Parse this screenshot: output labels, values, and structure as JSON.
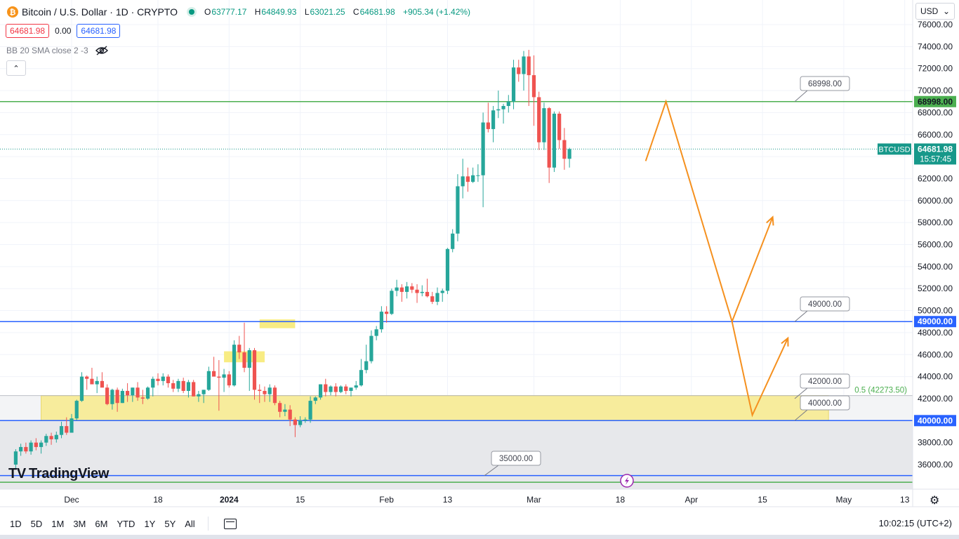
{
  "header": {
    "symbol_title": "Bitcoin / U.S. Dollar · 1D · CRYPTO",
    "btc_glyph": "₿",
    "ohlc": [
      {
        "key": "O",
        "value": "63777.17"
      },
      {
        "key": "H",
        "value": "64849.93"
      },
      {
        "key": "L",
        "value": "63021.25"
      },
      {
        "key": "C",
        "value": "64681.98"
      },
      {
        "key": "",
        "value": "+905.34 (+1.42%)"
      }
    ],
    "sell_price": "64681.98",
    "spread": "0.00",
    "buy_price": "64681.98",
    "indicator": "BB 20 SMA close 2 -3",
    "collapse_glyph": "⌃",
    "currency": "USD",
    "currency_caret": "⌄"
  },
  "branding": {
    "logo_mark": "TV",
    "logo_text": "TradingView"
  },
  "bottom_bar": {
    "timeframes": [
      "1D",
      "5D",
      "1M",
      "3M",
      "6M",
      "YTD",
      "1Y",
      "5Y",
      "All"
    ],
    "clock": "10:02:15 (UTC+2)",
    "gear_glyph": "⚙"
  },
  "colors": {
    "up": "#26a69a",
    "down": "#ef5350",
    "support_blue": "#2962ff",
    "resistance_green": "#4caf50",
    "forecast": "#f5901e",
    "zone": "#f7ea8c",
    "lower_shade": "#e7e8eb",
    "last_price": "#17988a"
  },
  "chart_data": {
    "type": "candlestick",
    "symbol": "BTCUSD",
    "ylim": [
      34300,
      77000
    ],
    "y_ticks": [
      "36000.00",
      "38000.00",
      "40000.00",
      "42000.00",
      "44000.00",
      "46000.00",
      "48000.00",
      "50000.00",
      "52000.00",
      "54000.00",
      "56000.00",
      "58000.00",
      "60000.00",
      "62000.00",
      "64000.00",
      "66000.00",
      "68000.00",
      "70000.00",
      "72000.00",
      "74000.00",
      "76000.00"
    ],
    "x_ticks": [
      {
        "label": "Dec",
        "date": "2023-12-01"
      },
      {
        "label": "18",
        "date": "2023-12-18"
      },
      {
        "label": "2024",
        "date": "2024-01-01",
        "bold": true
      },
      {
        "label": "15",
        "date": "2024-01-15"
      },
      {
        "label": "Feb",
        "date": "2024-02-01"
      },
      {
        "label": "13",
        "date": "2024-02-13"
      },
      {
        "label": "Mar",
        "date": "2024-03-01"
      },
      {
        "label": "18",
        "date": "2024-03-18"
      },
      {
        "label": "Apr",
        "date": "2024-04-01"
      },
      {
        "label": "15",
        "date": "2024-04-15"
      },
      {
        "label": "May",
        "date": "2024-05-01"
      },
      {
        "label": "13",
        "date": "2024-05-13"
      }
    ],
    "first_date": "2023-11-20",
    "candles": [
      [
        36000,
        37400,
        35600,
        37200
      ],
      [
        37200,
        37900,
        36800,
        37600
      ],
      [
        37600,
        38000,
        37000,
        37200
      ],
      [
        37200,
        38200,
        36900,
        38000
      ],
      [
        38000,
        38400,
        37300,
        37600
      ],
      [
        37600,
        38200,
        37000,
        38000
      ],
      [
        38000,
        38800,
        37700,
        38600
      ],
      [
        38600,
        38900,
        37800,
        38300
      ],
      [
        38300,
        39000,
        38000,
        38700
      ],
      [
        38700,
        39900,
        38400,
        39500
      ],
      [
        39500,
        40300,
        38700,
        38900
      ],
      [
        38900,
        40600,
        38900,
        40200
      ],
      [
        40200,
        41900,
        40000,
        41800
      ],
      [
        41800,
        44400,
        41700,
        44000
      ],
      [
        44000,
        44100,
        42800,
        43800
      ],
      [
        43800,
        44800,
        43400,
        43300
      ],
      [
        43300,
        44000,
        42500,
        43600
      ],
      [
        43600,
        44400,
        43200,
        43000
      ],
      [
        43000,
        43300,
        41400,
        41500
      ],
      [
        41500,
        42900,
        41000,
        42800
      ],
      [
        42800,
        43000,
        40800,
        41600
      ],
      [
        41600,
        42900,
        41600,
        42700
      ],
      [
        42700,
        43400,
        41700,
        42300
      ],
      [
        42300,
        43000,
        41700,
        43000
      ],
      [
        43000,
        43500,
        41800,
        42100
      ],
      [
        42100,
        42800,
        41500,
        42000
      ],
      [
        42000,
        43100,
        41900,
        43000
      ],
      [
        43000,
        44000,
        42200,
        43800
      ],
      [
        43800,
        44300,
        43200,
        43600
      ],
      [
        43600,
        44300,
        43200,
        44000
      ],
      [
        44000,
        44200,
        43000,
        43400
      ],
      [
        43400,
        43700,
        42600,
        42900
      ],
      [
        42900,
        43800,
        42600,
        43600
      ],
      [
        43600,
        43900,
        42500,
        42700
      ],
      [
        42700,
        43700,
        42100,
        43500
      ],
      [
        43500,
        43700,
        42200,
        42200
      ],
      [
        42200,
        42700,
        41700,
        42400
      ],
      [
        42400,
        42800,
        41600,
        42800
      ],
      [
        42800,
        44900,
        42700,
        44500
      ],
      [
        44500,
        45800,
        44300,
        44000
      ],
      [
        44000,
        45500,
        40900,
        43900
      ],
      [
        43900,
        44700,
        42600,
        44200
      ],
      [
        44200,
        44500,
        43000,
        43200
      ],
      [
        43200,
        47300,
        43100,
        46900
      ],
      [
        46900,
        47700,
        45600,
        46200
      ],
      [
        46200,
        48900,
        44400,
        44800
      ],
      [
        44800,
        46600,
        42700,
        46400
      ],
      [
        46400,
        46600,
        41900,
        42800
      ],
      [
        42800,
        43300,
        41600,
        42700
      ],
      [
        42700,
        43100,
        41700,
        42400
      ],
      [
        42400,
        43300,
        41700,
        43000
      ],
      [
        43000,
        43200,
        41400,
        41600
      ],
      [
        41600,
        41800,
        40300,
        40800
      ],
      [
        40800,
        41500,
        40400,
        41000
      ],
      [
        41000,
        41400,
        39500,
        40100
      ],
      [
        40100,
        40300,
        38500,
        39600
      ],
      [
        39600,
        40400,
        39400,
        40000
      ],
      [
        40000,
        40300,
        39800,
        40100
      ],
      [
        40100,
        42200,
        39800,
        41800
      ],
      [
        41800,
        42200,
        41500,
        42100
      ],
      [
        42100,
        43300,
        41900,
        43300
      ],
      [
        43300,
        43800,
        42200,
        42600
      ],
      [
        42600,
        43200,
        42300,
        43100
      ],
      [
        43100,
        43400,
        42200,
        42600
      ],
      [
        42600,
        43200,
        42500,
        43100
      ],
      [
        43100,
        43300,
        42400,
        42700
      ],
      [
        42700,
        43000,
        42200,
        43000
      ],
      [
        43000,
        43600,
        42800,
        43200
      ],
      [
        43200,
        45600,
        43100,
        44600
      ],
      [
        44600,
        46900,
        44300,
        45400
      ],
      [
        45400,
        48200,
        45200,
        47700
      ],
      [
        47700,
        48600,
        47300,
        48300
      ],
      [
        48300,
        50400,
        48000,
        49900
      ],
      [
        49900,
        50400,
        48900,
        49700
      ],
      [
        49700,
        52000,
        49600,
        51800
      ],
      [
        51800,
        52800,
        51300,
        52100
      ],
      [
        52100,
        52400,
        50800,
        51700
      ],
      [
        51700,
        52600,
        51100,
        52200
      ],
      [
        52200,
        52500,
        51600,
        51900
      ],
      [
        51900,
        52400,
        50700,
        51600
      ],
      [
        51600,
        52300,
        51300,
        51700
      ],
      [
        51700,
        52900,
        51200,
        51300
      ],
      [
        51300,
        51700,
        50600,
        50800
      ],
      [
        50800,
        52100,
        50500,
        51600
      ],
      [
        51600,
        52000,
        50800,
        51800
      ],
      [
        51800,
        55700,
        51500,
        55600
      ],
      [
        55600,
        57400,
        55300,
        57000
      ],
      [
        57000,
        62400,
        56300,
        61300
      ],
      [
        61300,
        63800,
        60200,
        62200
      ],
      [
        62200,
        63000,
        60800,
        61700
      ],
      [
        61700,
        63000,
        61600,
        62300
      ],
      [
        62300,
        63300,
        61700,
        62300
      ],
      [
        62300,
        68000,
        59400,
        67100
      ],
      [
        67100,
        68900,
        66200,
        66500
      ],
      [
        66500,
        68600,
        65300,
        68200
      ],
      [
        68200,
        70000,
        67500,
        68300
      ],
      [
        68300,
        68800,
        67000,
        68600
      ],
      [
        68600,
        69600,
        68000,
        69000
      ],
      [
        69000,
        72800,
        68300,
        72100
      ],
      [
        72100,
        72800,
        70800,
        71500
      ],
      [
        71500,
        73600,
        70000,
        73100
      ],
      [
        73100,
        73700,
        68600,
        71400
      ],
      [
        71400,
        73200,
        66800,
        69400
      ],
      [
        69400,
        69900,
        64600,
        65300
      ],
      [
        65300,
        68900,
        64600,
        68400
      ],
      [
        68400,
        68500,
        61600,
        63000
      ],
      [
        63000,
        68100,
        62600,
        67900
      ],
      [
        67900,
        68100,
        64700,
        65500
      ],
      [
        65500,
        66600,
        62800,
        63800
      ],
      [
        63800,
        64800,
        63000,
        64682
      ]
    ],
    "horizontal_levels": [
      {
        "price": 68998,
        "label": "68998.00",
        "color": "#4caf50",
        "axis_label": true
      },
      {
        "price": 49000,
        "label": "49000.00",
        "color": "#2962ff",
        "axis_label": true
      },
      {
        "price": 40000,
        "label": "40000.00",
        "color": "#2962ff",
        "axis_label": true
      },
      {
        "price": 35000,
        "label": "35000.00",
        "color": "#2962ff",
        "axis_label": false
      },
      {
        "price": 34400,
        "label": "",
        "color": "#4caf50",
        "axis_label": false
      }
    ],
    "zone": {
      "from": 40000,
      "to": 42273.5,
      "start_date": "2023-11-25",
      "end_date": "2024-04-28"
    },
    "zone_label": "42000.00",
    "zone_label_lower": "40000.00",
    "fib_label": "0.5 (42273.50)",
    "highlight_boxes": [
      {
        "date_from": "2024-01-07",
        "date_to": "2024-01-14",
        "price_from": 48400,
        "price_to": 49200
      },
      {
        "date_from": "2023-12-31",
        "date_to": "2024-01-08",
        "price_from": 45300,
        "price_to": 46300
      }
    ],
    "forecast_paths": [
      [
        [
          "2024-03-23",
          63600
        ],
        [
          "2024-03-27",
          69000
        ],
        [
          "2024-04-09",
          49000
        ],
        [
          "2024-04-17",
          58500
        ]
      ],
      [
        [
          "2024-04-09",
          49000
        ],
        [
          "2024-04-13",
          40500
        ],
        [
          "2024-04-20",
          47500
        ]
      ]
    ],
    "last_price": {
      "symbol": "BTCUSD",
      "value": "64681.98",
      "countdown": "15:57:45",
      "price": 64681.98
    }
  }
}
